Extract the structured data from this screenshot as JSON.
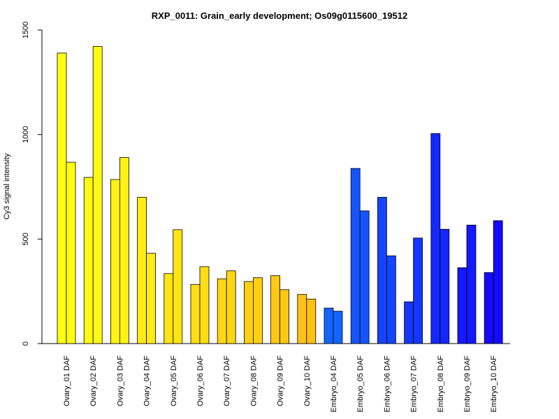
{
  "chart_data": {
    "type": "bar",
    "title": "RXP_0011: Grain_early development; Os09g0115600_19512",
    "xlabel": "",
    "ylabel": "Cy3 signal intensity",
    "ylim": [
      0,
      1500
    ],
    "yticks": [
      0,
      500,
      1000,
      1500
    ],
    "grid": false,
    "categories": [
      "Ovary_01 DAF",
      "Ovary_02 DAF",
      "Ovary_03 DAF",
      "Ovary_04 DAF",
      "Ovary_05 DAF",
      "Ovary_06 DAF",
      "Ovary_07 DAF",
      "Ovary_08 DAF",
      "Ovary_09 DAF",
      "Ovary_10 DAF",
      "Embryo_04 DAF",
      "Embryo_05 DAF",
      "Embryo_06 DAF",
      "Embryo_07 DAF",
      "Embryo_08 DAF",
      "Embryo_09 DAF",
      "Embryo_10 DAF"
    ],
    "colors": [
      "#ffff14",
      "#fff914",
      "#fff214",
      "#ffeb14",
      "#ffe414",
      "#ffdd14",
      "#ffd614",
      "#ffcf14",
      "#ffc814",
      "#ffc114",
      "#1464ff",
      "#1455ff",
      "#1446ff",
      "#1437ff",
      "#1428ff",
      "#1419ff",
      "#140aff"
    ],
    "series": [
      {
        "values": [
          1390,
          795,
          785,
          700,
          335,
          283,
          310,
          297,
          325,
          235,
          170,
          838,
          700,
          200,
          1005,
          363,
          340
        ]
      },
      {
        "values": [
          868,
          1422,
          890,
          432,
          545,
          368,
          348,
          315,
          258,
          213,
          155,
          635,
          420,
          505,
          547,
          567,
          588
        ]
      }
    ]
  }
}
